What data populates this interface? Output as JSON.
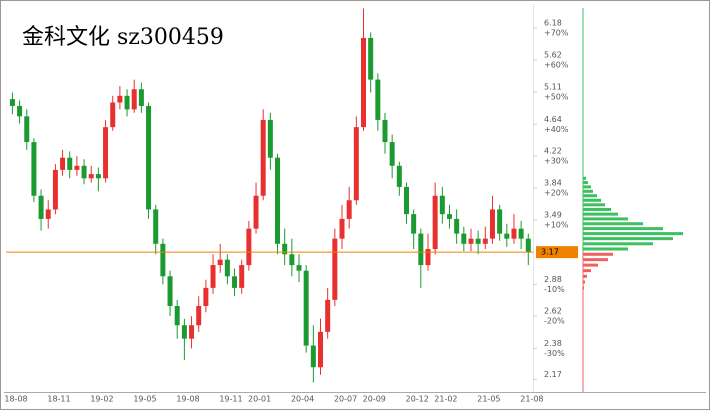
{
  "chart_data": {
    "type": "candlestick",
    "title": "金科文化  sz300459",
    "log": true,
    "ylim": [
      2.09,
      6.56
    ],
    "yticks": [
      6.18,
      5.62,
      5.11,
      4.64,
      4.22,
      3.84,
      3.49,
      2.88,
      2.62,
      2.38,
      2.17
    ],
    "ytick_changes": [
      "+70%",
      "+60%",
      "+50%",
      "+40%",
      "+30%",
      "+20%",
      "+10%",
      "-10%",
      "-20%",
      "-30%",
      null
    ],
    "xticks": [
      "18-08",
      "18-11",
      "19-02",
      "19-05",
      "19-08",
      "19-11",
      "20-01",
      "20-04",
      "20-07",
      "20-09",
      "20-12",
      "21-02",
      "21-05",
      "21-08"
    ],
    "last_price": 3.17,
    "last_price_color": "#f08000",
    "up_color": "#e83030",
    "down_color": "#1a9a30",
    "open": [
      5.0,
      4.9,
      4.75,
      4.4,
      3.75,
      3.5,
      3.6,
      4.05,
      4.2,
      4.05,
      4.1,
      3.95,
      4.0,
      3.95,
      4.6,
      4.95,
      5.05,
      4.85,
      5.15,
      4.9,
      3.6,
      3.25,
      2.95,
      2.7,
      2.55,
      2.45,
      2.55,
      2.7,
      2.85,
      3.05,
      3.1,
      2.95,
      2.85,
      3.05,
      3.4,
      3.75,
      4.7,
      4.2,
      3.25,
      3.15,
      3.05,
      3.0,
      2.4,
      2.25,
      2.5,
      2.75,
      3.3,
      3.5,
      3.7,
      4.6,
      6.0,
      5.3,
      4.7,
      4.4,
      4.1,
      3.85,
      3.55,
      3.35,
      3.05,
      3.2,
      3.75,
      3.55,
      3.5,
      3.35,
      3.25,
      3.3,
      3.25,
      3.3,
      3.6,
      3.35,
      3.3,
      3.4,
      3.3
    ],
    "high": [
      5.1,
      4.98,
      4.85,
      4.45,
      3.82,
      3.7,
      4.12,
      4.3,
      4.28,
      4.22,
      4.18,
      4.1,
      4.08,
      4.7,
      5.05,
      5.2,
      5.15,
      5.3,
      5.25,
      4.95,
      3.65,
      3.3,
      3.0,
      2.75,
      2.6,
      2.62,
      2.78,
      2.92,
      3.15,
      3.25,
      3.15,
      3.02,
      3.1,
      3.48,
      3.9,
      4.85,
      4.8,
      4.25,
      3.4,
      3.3,
      3.15,
      3.05,
      2.55,
      2.6,
      2.85,
      3.4,
      3.65,
      3.85,
      4.75,
      6.55,
      6.1,
      5.4,
      4.8,
      4.5,
      4.15,
      3.9,
      3.6,
      3.4,
      3.35,
      3.9,
      3.85,
      3.65,
      3.6,
      3.42,
      3.4,
      3.38,
      3.42,
      3.75,
      3.65,
      3.45,
      3.55,
      3.48,
      3.35
    ],
    "low": [
      4.78,
      4.65,
      4.3,
      3.68,
      3.38,
      3.4,
      3.55,
      3.98,
      3.95,
      3.98,
      3.88,
      3.9,
      3.8,
      3.9,
      4.55,
      4.85,
      4.75,
      4.8,
      4.8,
      3.5,
      3.15,
      2.88,
      2.62,
      2.45,
      2.3,
      2.38,
      2.5,
      2.65,
      2.8,
      2.98,
      2.88,
      2.78,
      2.8,
      3.0,
      3.35,
      3.7,
      4.05,
      3.15,
      3.05,
      2.95,
      2.9,
      2.35,
      2.15,
      2.2,
      2.45,
      2.7,
      3.2,
      3.4,
      3.65,
      4.55,
      5.1,
      4.55,
      4.25,
      3.95,
      3.75,
      3.45,
      3.2,
      2.85,
      3.0,
      3.15,
      3.45,
      3.4,
      3.25,
      3.18,
      3.18,
      3.15,
      3.2,
      3.25,
      3.28,
      3.22,
      3.25,
      3.2,
      3.05
    ],
    "close": [
      4.9,
      4.75,
      4.4,
      3.75,
      3.5,
      3.6,
      4.05,
      4.2,
      4.05,
      4.1,
      3.95,
      4.0,
      3.95,
      4.6,
      4.95,
      5.05,
      4.85,
      5.15,
      4.9,
      3.6,
      3.25,
      2.95,
      2.7,
      2.55,
      2.45,
      2.55,
      2.7,
      2.85,
      3.05,
      3.1,
      2.95,
      2.85,
      3.05,
      3.4,
      3.75,
      4.7,
      4.2,
      3.25,
      3.15,
      3.05,
      3.0,
      2.4,
      2.25,
      2.5,
      2.75,
      3.3,
      3.5,
      3.7,
      4.6,
      6.0,
      5.3,
      4.7,
      4.4,
      4.1,
      3.85,
      3.55,
      3.35,
      3.05,
      3.2,
      3.75,
      3.55,
      3.5,
      3.35,
      3.25,
      3.3,
      3.25,
      3.3,
      3.6,
      3.35,
      3.3,
      3.4,
      3.3,
      3.17
    ],
    "profile": {
      "up_color": "#3cc060",
      "down_color": "#f06060",
      "prices": [
        3.95,
        3.9,
        3.85,
        3.8,
        3.75,
        3.7,
        3.65,
        3.6,
        3.55,
        3.5,
        3.45,
        3.4,
        3.35,
        3.3,
        3.25,
        3.2,
        3.15,
        3.1,
        3.05,
        3.0,
        2.95,
        2.9,
        2.85
      ],
      "values": [
        3,
        5,
        8,
        10,
        14,
        18,
        22,
        28,
        35,
        45,
        60,
        80,
        100,
        90,
        70,
        45,
        30,
        25,
        15,
        8,
        4,
        2,
        1
      ]
    }
  }
}
